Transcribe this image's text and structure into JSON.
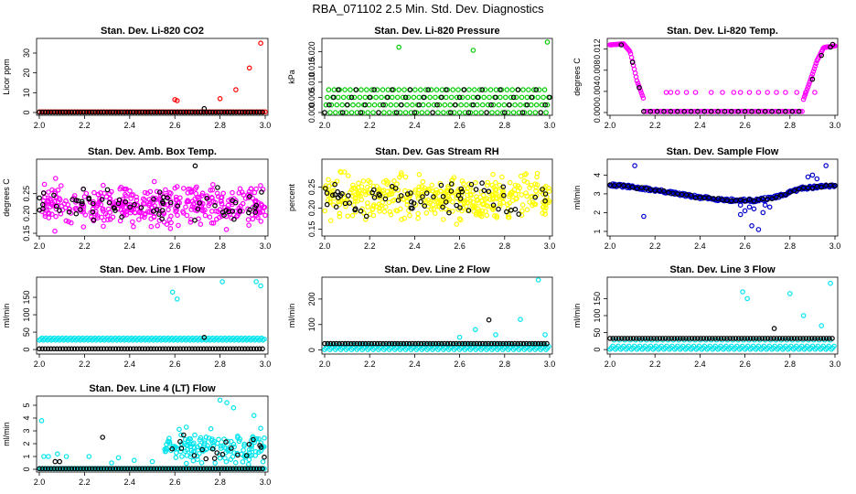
{
  "figure": {
    "title": "RBA_071102  2.5 Min. Std. Dev. Diagnostics"
  },
  "chart_data": [
    {
      "type": "scatter",
      "title": "Stan. Dev. Li-820 CO2",
      "ylabel": "Licor ppm",
      "xlim": [
        2.0,
        3.0
      ],
      "ylim": [
        0,
        36
      ],
      "xticks": [
        "2.0",
        "2.2",
        "2.4",
        "2.6",
        "2.8",
        "3.0"
      ],
      "yticks": [
        "0",
        "10",
        "20",
        "30"
      ],
      "series": [
        {
          "color": "#ff0000",
          "base": {
            "from": 2.0,
            "to": 3.0,
            "step": 0.01,
            "y": 0.3
          },
          "points": [
            [
              2.6,
              6.5
            ],
            [
              2.61,
              6.0
            ],
            [
              2.8,
              7.0
            ],
            [
              2.87,
              11.5
            ],
            [
              2.93,
              22.5
            ],
            [
              2.98,
              35.0
            ]
          ]
        },
        {
          "color": "#000000",
          "base": {
            "from": 2.0,
            "to": 3.0,
            "step": 0.013,
            "y": 0.2
          },
          "points": [
            [
              2.73,
              2.0
            ]
          ]
        }
      ]
    },
    {
      "type": "scatter",
      "title": "Stan. Dev. Li-820 Pressure",
      "ylabel": "kPa",
      "xlim": [
        2.0,
        3.0
      ],
      "ylim": [
        0,
        0.0235
      ],
      "xticks": [
        "2.0",
        "2.2",
        "2.4",
        "2.6",
        "2.8",
        "3.0"
      ],
      "yticks": [
        "0.000",
        "0.005",
        "0.010",
        "0.015",
        "0.020"
      ],
      "series": [
        {
          "color": "#00cc00",
          "base": {
            "from": 2.0,
            "to": 3.0,
            "step": 0.006,
            "values": [
              0.0,
              0.0025,
              0.005,
              0.0075
            ]
          },
          "points": [
            [
              2.33,
              0.0215
            ],
            [
              2.66,
              0.0205
            ],
            [
              2.99,
              0.0232
            ]
          ]
        },
        {
          "color": "#000000",
          "base": {
            "from": 2.0,
            "to": 3.0,
            "step": 0.02,
            "values": [
              0.0,
              0.0025,
              0.005,
              0.0075
            ]
          },
          "points": []
        }
      ]
    },
    {
      "type": "scatter",
      "title": "Stan. Dev. Li-820 Temp.",
      "ylabel": "degrees C",
      "xlim": [
        2.0,
        3.0
      ],
      "ylim": [
        0,
        0.0135
      ],
      "xticks": [
        "2.0",
        "2.2",
        "2.4",
        "2.6",
        "2.8",
        "3.0"
      ],
      "yticks": [
        "0.000",
        "0.004",
        "0.008",
        "0.012"
      ],
      "series": [
        {
          "color": "#ff00ff",
          "curves": [
            {
              "x": [
                2.0,
                2.06,
                2.09,
                2.12,
                2.15
              ],
              "y": [
                0.0128,
                0.013,
                0.0115,
                0.006,
                0.0025
              ]
            },
            {
              "x": [
                2.86,
                2.89,
                2.92,
                2.95,
                3.0
              ],
              "y": [
                0.0025,
                0.006,
                0.0098,
                0.0123,
                0.0126
              ]
            }
          ],
          "base": {
            "from": 2.15,
            "to": 2.86,
            "step": 0.008,
            "y": 0.0002
          },
          "points": [
            [
              2.25,
              0.0038
            ],
            [
              2.27,
              0.0038
            ],
            [
              2.3,
              0.0038
            ],
            [
              2.34,
              0.0038
            ],
            [
              2.38,
              0.0038
            ],
            [
              2.45,
              0.0038
            ],
            [
              2.5,
              0.0038
            ],
            [
              2.55,
              0.0038
            ],
            [
              2.58,
              0.0038
            ],
            [
              2.62,
              0.0038
            ],
            [
              2.66,
              0.0038
            ],
            [
              2.7,
              0.0038
            ],
            [
              2.74,
              0.0038
            ],
            [
              2.78,
              0.0038
            ],
            [
              2.83,
              0.0038
            ],
            [
              2.87,
              0.0038
            ],
            [
              2.91,
              0.0038
            ]
          ]
        },
        {
          "color": "#000000",
          "base": {
            "from": 2.15,
            "to": 2.86,
            "step": 0.03,
            "y": 0.0002
          },
          "points": [
            [
              2.05,
              0.0128
            ],
            [
              2.1,
              0.0095
            ],
            [
              2.13,
              0.0047
            ],
            [
              2.9,
              0.0063
            ],
            [
              2.94,
              0.0108
            ],
            [
              2.98,
              0.0124
            ],
            [
              2.99,
              0.0129
            ]
          ]
        }
      ]
    },
    {
      "type": "scatter",
      "title": "Stan. Dev. Amb. Box Temp.",
      "ylabel": "degrees C",
      "xlim": [
        2.0,
        3.0
      ],
      "ylim": [
        0.15,
        0.33
      ],
      "xticks": [
        "2.0",
        "2.2",
        "2.4",
        "2.6",
        "2.8",
        "3.0"
      ],
      "yticks": [
        "0.15",
        "0.20",
        "0.25"
      ],
      "series": [
        {
          "color": "#ff00ff",
          "cloud": {
            "n": 420,
            "center": 0.22,
            "spread": 0.045,
            "seed": 11
          },
          "points": []
        },
        {
          "color": "#000000",
          "cloud": {
            "n": 70,
            "center": 0.22,
            "spread": 0.035,
            "seed": 12
          },
          "points": [
            [
              2.69,
              0.32
            ]
          ]
        }
      ]
    },
    {
      "type": "scatter",
      "title": "Stan. Dev. Gas Stream RH",
      "ylabel": "percent",
      "xlim": [
        2.0,
        3.0
      ],
      "ylim": [
        0.14,
        0.31
      ],
      "xticks": [
        "2.0",
        "2.2",
        "2.4",
        "2.6",
        "2.8",
        "3.0"
      ],
      "yticks": [
        "0.15",
        "0.20",
        "0.25"
      ],
      "series": [
        {
          "color": "#ffff00",
          "cloud": {
            "n": 420,
            "center": 0.225,
            "spread": 0.045,
            "seed": 21
          },
          "points": []
        },
        {
          "color": "#000000",
          "cloud": {
            "n": 70,
            "center": 0.225,
            "spread": 0.035,
            "seed": 22
          },
          "points": []
        }
      ]
    },
    {
      "type": "scatter",
      "title": "Stan. Dev. Sample Flow",
      "ylabel": "ml/min",
      "xlim": [
        2.0,
        3.0
      ],
      "ylim": [
        0.9,
        4.7
      ],
      "xticks": [
        "2.0",
        "2.2",
        "2.4",
        "2.6",
        "2.8",
        "3.0"
      ],
      "yticks": [
        "1",
        "2",
        "3",
        "4"
      ],
      "series": [
        {
          "color": "#0000cc",
          "trend": {
            "x": [
              2.0,
              2.2,
              2.4,
              2.55,
              2.65,
              2.75,
              2.85,
              3.0
            ],
            "y": [
              3.5,
              3.2,
              2.8,
              2.65,
              2.65,
              2.85,
              3.3,
              3.45
            ],
            "spread": 0.08,
            "step": 0.004,
            "seed": 31
          },
          "points": [
            [
              2.11,
              4.5
            ],
            [
              2.15,
              1.8
            ],
            [
              2.58,
              1.9
            ],
            [
              2.6,
              2.1
            ],
            [
              2.63,
              1.3
            ],
            [
              2.62,
              2.3
            ],
            [
              2.66,
              1.1
            ],
            [
              2.68,
              2.0
            ],
            [
              2.69,
              2.4
            ],
            [
              2.71,
              2.3
            ],
            [
              2.9,
              4.0
            ],
            [
              2.92,
              3.8
            ],
            [
              2.96,
              4.5
            ],
            [
              2.58,
              2.4
            ],
            [
              2.64,
              2.2
            ],
            [
              2.88,
              3.9
            ]
          ]
        },
        {
          "color": "#000000",
          "trend": {
            "x": [
              2.0,
              2.2,
              2.4,
              2.55,
              2.65,
              2.75,
              2.85,
              3.0
            ],
            "y": [
              3.5,
              3.2,
              2.8,
              2.65,
              2.65,
              2.85,
              3.3,
              3.45
            ],
            "spread": 0.05,
            "step": 0.02,
            "seed": 32
          },
          "points": []
        }
      ]
    },
    {
      "type": "scatter",
      "title": "Stan. Dev. Line 1 Flow",
      "ylabel": "ml/min",
      "xlim": [
        2.0,
        3.0
      ],
      "ylim": [
        -5,
        200
      ],
      "xticks": [
        "2.0",
        "2.2",
        "2.4",
        "2.6",
        "2.8",
        "3.0"
      ],
      "yticks": [
        "0",
        "50",
        "100",
        "150"
      ],
      "series": [
        {
          "color": "#00e5ee",
          "base": {
            "from": 2.0,
            "to": 3.0,
            "step": 0.006,
            "values": [
              27,
              30,
              33
            ]
          },
          "points": [
            [
              2.59,
              165
            ],
            [
              2.61,
              145
            ],
            [
              2.81,
              195
            ],
            [
              2.96,
              195
            ],
            [
              2.98,
              183
            ]
          ]
        },
        {
          "color": "#000000",
          "base": {
            "from": 2.0,
            "to": 3.0,
            "step": 0.013,
            "y": 2
          },
          "points": [
            [
              2.73,
              35
            ]
          ]
        }
      ]
    },
    {
      "type": "scatter",
      "title": "Stan. Dev. Line 2 Flow",
      "ylabel": "ml/min",
      "xlim": [
        2.0,
        3.0
      ],
      "ylim": [
        -5,
        275
      ],
      "xticks": [
        "2.0",
        "2.2",
        "2.4",
        "2.6",
        "2.8",
        "3.0"
      ],
      "yticks": [
        "0",
        "100",
        "200"
      ],
      "series": [
        {
          "color": "#00e5ee",
          "base": {
            "from": 2.0,
            "to": 3.0,
            "step": 0.006,
            "values": [
              2,
              8,
              14,
              22
            ]
          },
          "points": [
            [
              2.6,
              50
            ],
            [
              2.67,
              80
            ],
            [
              2.76,
              60
            ],
            [
              2.87,
              120
            ],
            [
              2.95,
              275
            ],
            [
              2.98,
              60
            ]
          ]
        },
        {
          "color": "#000000",
          "base": {
            "from": 2.0,
            "to": 3.0,
            "step": 0.013,
            "y": 25
          },
          "points": [
            [
              2.73,
              118
            ]
          ]
        }
      ]
    },
    {
      "type": "scatter",
      "title": "Stan. Dev. Line 3 Flow",
      "ylabel": "ml/min",
      "xlim": [
        2.0,
        3.0
      ],
      "ylim": [
        -5,
        205
      ],
      "xticks": [
        "2.0",
        "2.2",
        "2.4",
        "2.6",
        "2.8",
        "3.0"
      ],
      "yticks": [
        "0",
        "50",
        "100",
        "150"
      ],
      "series": [
        {
          "color": "#00e5ee",
          "base": {
            "from": 2.0,
            "to": 3.0,
            "step": 0.006,
            "values": [
              1,
              5,
              10,
              28
            ]
          },
          "points": [
            [
              2.59,
              170
            ],
            [
              2.61,
              150
            ],
            [
              2.8,
              165
            ],
            [
              2.86,
              100
            ],
            [
              2.94,
              70
            ],
            [
              2.98,
              195
            ]
          ]
        },
        {
          "color": "#000000",
          "base": {
            "from": 2.0,
            "to": 3.0,
            "step": 0.013,
            "y": 33
          },
          "points": [
            [
              2.73,
              62
            ]
          ]
        }
      ]
    },
    {
      "type": "scatter",
      "title": "Stan. Dev. Line 4 (LT) Flow",
      "ylabel": "ml/min",
      "xlim": [
        2.0,
        3.0
      ],
      "ylim": [
        0,
        5.5
      ],
      "xticks": [
        "2.0",
        "2.2",
        "2.4",
        "2.6",
        "2.8",
        "3.0"
      ],
      "yticks": [
        "0",
        "1",
        "2",
        "3",
        "4",
        "5"
      ],
      "series": [
        {
          "color": "#00e5ee",
          "base": {
            "from": 2.0,
            "to": 3.0,
            "step": 0.006,
            "y": 0.05
          },
          "cloud": {
            "n": 150,
            "center": 1.7,
            "spread": 1.1,
            "seed": 41,
            "xmin": 2.55,
            "xmax": 3.0
          },
          "points": [
            [
              2.01,
              3.8
            ],
            [
              2.02,
              1.0
            ],
            [
              2.04,
              1.0
            ],
            [
              2.08,
              1.2
            ],
            [
              2.12,
              1.0
            ],
            [
              2.22,
              1.0
            ],
            [
              2.32,
              0.5
            ],
            [
              2.35,
              0.9
            ],
            [
              2.42,
              0.7
            ],
            [
              2.5,
              0.6
            ],
            [
              2.8,
              5.4
            ],
            [
              2.83,
              5.2
            ],
            [
              2.86,
              4.8
            ],
            [
              2.95,
              4.2
            ],
            [
              2.98,
              3.2
            ]
          ]
        },
        {
          "color": "#000000",
          "base": {
            "from": 2.0,
            "to": 3.0,
            "step": 0.013,
            "y": 0.05
          },
          "cloud": {
            "n": 20,
            "center": 1.6,
            "spread": 0.8,
            "seed": 42,
            "xmin": 2.58,
            "xmax": 3.0
          },
          "points": [
            [
              2.07,
              0.6
            ],
            [
              2.09,
              0.6
            ],
            [
              2.28,
              2.5
            ]
          ]
        }
      ]
    }
  ]
}
